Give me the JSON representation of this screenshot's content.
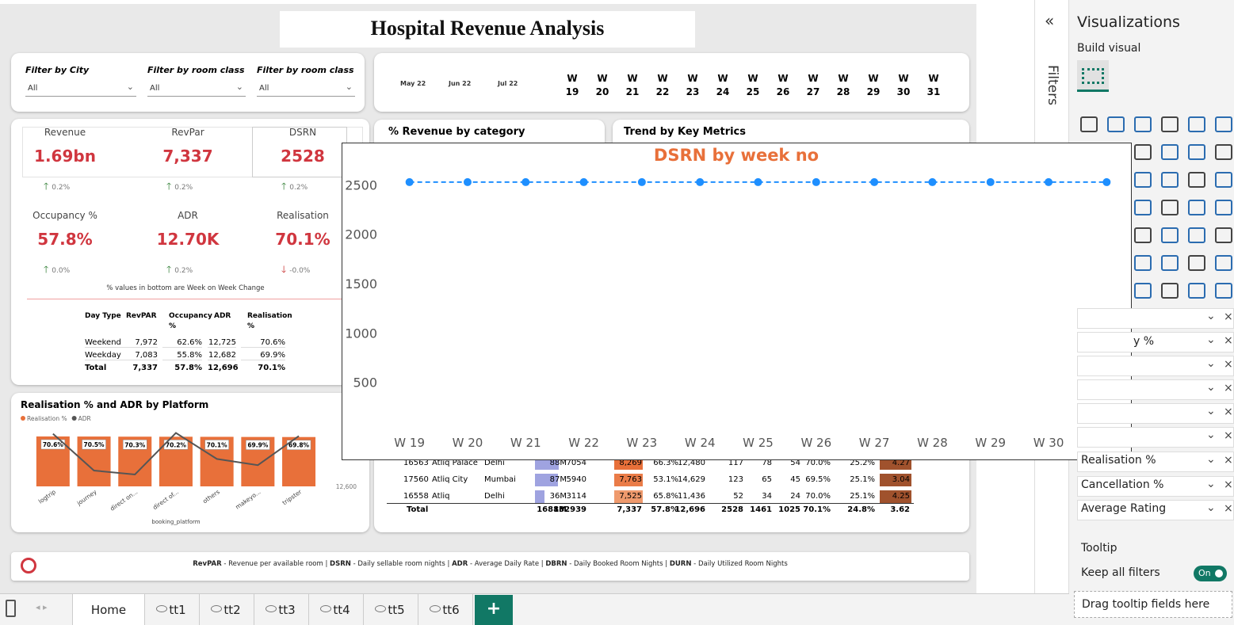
{
  "header": {
    "title": "Hospital Revenue Analysis"
  },
  "filters": [
    {
      "label": "Filter by City",
      "value": "All"
    },
    {
      "label": "Filter by room class",
      "value": "All"
    },
    {
      "label": "Filter by room class",
      "value": "All"
    }
  ],
  "date_slicer": {
    "months": [
      "May 22",
      "Jun 22",
      "Jul 22"
    ],
    "weeks": [
      "W 19",
      "W 20",
      "W 21",
      "W 22",
      "W 23",
      "W 24",
      "W 25",
      "W 26",
      "W 27",
      "W 28",
      "W 29",
      "W 30",
      "W 31"
    ]
  },
  "kpis": [
    {
      "label": "Revenue",
      "value": "1.69bn",
      "change": "0.2%",
      "direction": "up"
    },
    {
      "label": "RevPar",
      "value": "7,337",
      "change": "0.2%",
      "direction": "up"
    },
    {
      "label": "DSRN",
      "value": "2528",
      "change": "0.2%",
      "direction": "up"
    },
    {
      "label": "Occupancy %",
      "value": "57.8%",
      "change": "0.0%",
      "direction": "up"
    },
    {
      "label": "ADR",
      "value": "12.70K",
      "change": "0.2%",
      "direction": "up"
    },
    {
      "label": "Realisation",
      "value": "70.1%",
      "change": "-0.0%",
      "direction": "down"
    }
  ],
  "kpi_note": "% values in bottom are Week on Week Change",
  "day_type_table": {
    "header": [
      "Day Type",
      "RevPAR",
      "Occupancy %",
      "ADR",
      "Realisation %"
    ],
    "rows": [
      [
        "Weekend",
        "7,972",
        "62.6%",
        "12,725",
        "70.6%"
      ],
      [
        "Weekday",
        "7,083",
        "55.8%",
        "12,682",
        "69.9%"
      ],
      [
        "Total",
        "7,337",
        "57.8%",
        "12,696",
        "70.1%"
      ]
    ]
  },
  "sections": {
    "revenue_by_category": "% Revenue by category",
    "trend": "Trend by Key Metrics"
  },
  "hotel_table": {
    "rows": [
      [
        "16563",
        "Atliq Palace",
        "Delhi",
        "88M",
        "7054",
        "8,269",
        "66.3%",
        "12,480",
        "117",
        "78",
        "54",
        "70.0%",
        "25.2%",
        "4.27"
      ],
      [
        "17560",
        "Atliq City",
        "Mumbai",
        "87M",
        "5940",
        "7,763",
        "53.1%",
        "14,629",
        "123",
        "65",
        "45",
        "69.5%",
        "25.1%",
        "3.04"
      ],
      [
        "16558",
        "Atliq",
        "Delhi",
        "36M",
        "3114",
        "7,525",
        "65.8%",
        "11,436",
        "52",
        "34",
        "24",
        "70.0%",
        "25.1%",
        "4.25"
      ]
    ],
    "total": [
      "Total",
      "1688M",
      "132939",
      "7,337",
      "57.8%",
      "12,696",
      "2528",
      "1461",
      "1025",
      "70.1%",
      "24.8%",
      "3.62"
    ]
  },
  "footer": {
    "parts": [
      "RevPAR",
      " - Revenue per available room | ",
      "DSRN",
      " - Daily sellable room nights | ",
      "ADR",
      " - Average Daily Rate | ",
      "DBRN",
      " - Daily Booked Room Nights | ",
      "DURN",
      " - Daily Utilized Room Nights"
    ]
  },
  "tabs": [
    "Home",
    "tt1",
    "tt2",
    "tt3",
    "tt4",
    "tt5",
    "tt6"
  ],
  "pane": {
    "filters": "Filters",
    "title": "Visualizations",
    "build": "Build visual",
    "fields": [
      "y %",
      "Realisation %",
      "Cancellation %",
      "Average Rating"
    ],
    "tooltip": "Tooltip",
    "keep": "Keep all filters",
    "toggle": "On",
    "drag": "Drag tooltip fields here"
  },
  "chart_data": [
    {
      "type": "line",
      "title": "DSRN by week no",
      "categories": [
        "W 19",
        "W 20",
        "W 21",
        "W 22",
        "W 23",
        "W 24",
        "W 25",
        "W 26",
        "W 27",
        "W 28",
        "W 29",
        "W 30",
        "W 31"
      ],
      "series": [
        {
          "name": "DSRN",
          "color": "#1e8fff",
          "values": [
            2528,
            2528,
            2528,
            2528,
            2528,
            2528,
            2528,
            2528,
            2528,
            2528,
            2528,
            2528,
            2528
          ]
        }
      ],
      "ylim": [
        0,
        2800
      ],
      "yticks": [
        500,
        1000,
        1500,
        2000,
        2500
      ],
      "grid": false,
      "title_color": "#e8703a"
    },
    {
      "type": "bar",
      "title": "Realisation % and ADR by Platform",
      "categories": [
        "logtrip",
        "journey",
        "direct on...",
        "direct of...",
        "others",
        "makeyo...",
        "tripster"
      ],
      "x_label": "booking_platform",
      "series": [
        {
          "name": "Realisation %",
          "color": "#e8703a",
          "values": [
            70.6,
            70.5,
            70.3,
            70.2,
            70.1,
            69.9,
            69.8
          ],
          "value_labels": [
            "70.6%",
            "70.5%",
            "70.3%",
            "70.2%",
            "70.1%",
            "69.9%",
            "69.8%"
          ]
        },
        {
          "name": "ADR",
          "color": "#555555",
          "axis": "y2",
          "values": [
            12786,
            12656,
            12642,
            12789,
            12697,
            12675,
            12778
          ]
        }
      ],
      "ylim": [
        0,
        80
      ],
      "y2lim": [
        12600,
        12800
      ],
      "y2ticks": [
        {
          "value": 12600,
          "label": "12,600"
        }
      ]
    }
  ]
}
